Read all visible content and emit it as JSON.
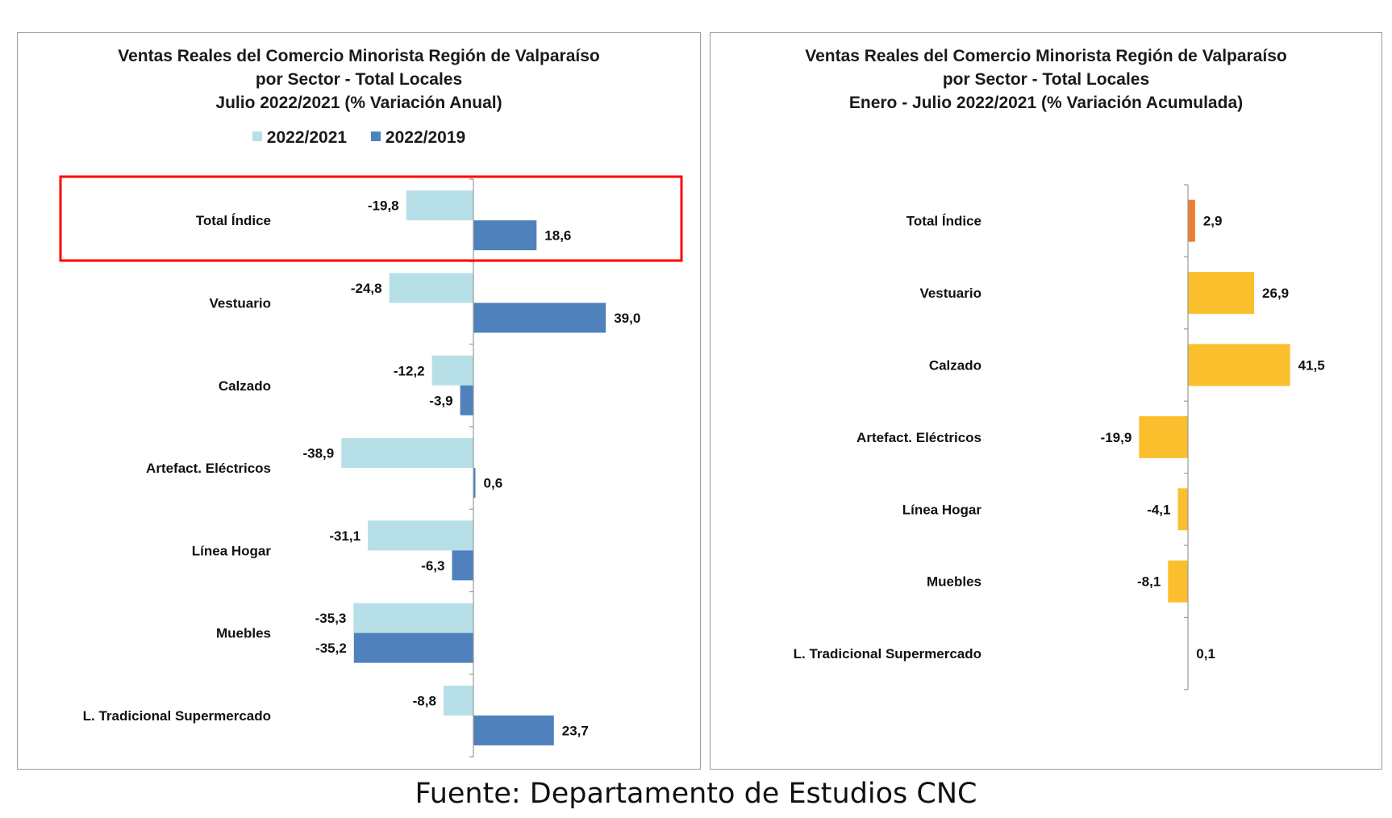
{
  "chart_data": [
    {
      "type": "bar",
      "orientation": "horizontal",
      "title_lines": [
        "Ventas Reales del Comercio Minorista Región de Valparaíso",
        "por Sector - Total Locales",
        "Julio 2022/2021 (% Variación Anual)"
      ],
      "legend_position": "top",
      "categories": [
        "Total Índice",
        "Vestuario",
        "Calzado",
        "Artefact. Eléctricos",
        "Línea Hogar",
        "Muebles",
        "L. Tradicional Supermercado"
      ],
      "series": [
        {
          "name": "2022/2021",
          "color": "#b7dfe8",
          "values": [
            -19.8,
            -24.8,
            -12.2,
            -38.9,
            -31.1,
            -35.3,
            -8.8
          ],
          "labels": [
            "-19,8",
            "-24,8",
            "-12,2",
            "-38,9",
            "-31,1",
            "-35,3",
            "-8,8"
          ]
        },
        {
          "name": "2022/2019",
          "color": "#4f81bd",
          "values": [
            18.6,
            39.0,
            -3.9,
            0.6,
            -6.3,
            -35.2,
            23.7
          ],
          "labels": [
            "18,6",
            "39,0",
            "-3,9",
            "0,6",
            "-6,3",
            "-35,2",
            "23,7"
          ]
        }
      ],
      "xlim": [
        -45,
        50
      ],
      "highlight": {
        "category": "Total Índice",
        "color": "#ff0000"
      }
    },
    {
      "type": "bar",
      "orientation": "horizontal",
      "title_lines": [
        "Ventas Reales del Comercio Minorista Región de Valparaíso",
        "por Sector  - Total Locales",
        "Enero - Julio 2022/2021 (% Variación Acumulada)"
      ],
      "categories": [
        "Total Índice",
        "Vestuario",
        "Calzado",
        "Artefact. Eléctricos",
        "Línea Hogar",
        "Muebles",
        "L. Tradicional Supermercado"
      ],
      "series": [
        {
          "values": [
            2.9,
            26.9,
            41.5,
            -19.9,
            -4.1,
            -8.1,
            0.1
          ],
          "labels": [
            "2,9",
            "26,9",
            "41,5",
            "-19,9",
            "-4,1",
            "-8,1",
            "0,1"
          ]
        }
      ],
      "bar_colors": [
        "#ed7d31",
        "#fbbf2d",
        "#fbbf2d",
        "#fbbf2d",
        "#fbbf2d",
        "#fbbf2d",
        "#fbbf2d"
      ],
      "xlim": [
        -25,
        50
      ]
    }
  ],
  "source_text": "Fuente: Departamento de Estudios CNC"
}
